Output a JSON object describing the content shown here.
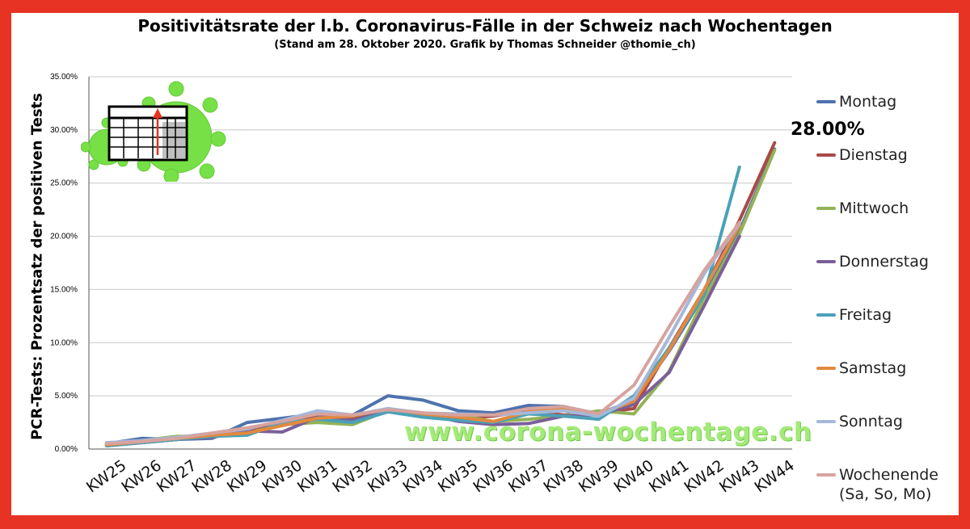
{
  "chart_data": {
    "type": "line",
    "title": "Positivitätsrate der l.b. Coronavirus-Fälle in der Schweiz nach Wochentagen",
    "subtitle": "(Stand am 28. Oktober 2020. Grafik by Thomas Schneider @thomie_ch)",
    "ylabel": "PCR-Tests: Prozentsatz der positiven Tests",
    "xlabel": "",
    "ylim": [
      0,
      35
    ],
    "yticks": [
      "0.00%",
      "5.00%",
      "10.00%",
      "15.00%",
      "20.00%",
      "25.00%",
      "30.00%",
      "35.00%"
    ],
    "categories": [
      "KW25",
      "KW26",
      "KW27",
      "KW28",
      "KW29",
      "KW30",
      "KW31",
      "KW32",
      "KW33",
      "KW34",
      "KW35",
      "KW36",
      "KW37",
      "KW38",
      "KW39",
      "KW40",
      "KW41",
      "KW42",
      "KW43",
      "KW44"
    ],
    "grid": true,
    "legend_position": "right",
    "series": [
      {
        "name": "Montag",
        "color": "#4e72ad",
        "values": [
          0.5,
          1.0,
          0.9,
          1.0,
          2.5,
          2.9,
          3.3,
          3.2,
          5.0,
          4.6,
          3.6,
          3.4,
          4.1,
          4.0,
          3.3,
          4.6,
          9.2,
          14.5,
          20.5,
          28.2
        ]
      },
      {
        "name": "Dienstag",
        "color": "#a84a46",
        "values": [
          0.3,
          0.6,
          0.9,
          1.3,
          1.8,
          2.6,
          3.0,
          3.0,
          3.7,
          3.4,
          2.9,
          3.1,
          3.6,
          3.2,
          3.4,
          3.8,
          9.5,
          15.0,
          21.5,
          28.8
        ]
      },
      {
        "name": "Mittwoch",
        "color": "#93b356",
        "values": [
          0.4,
          0.8,
          1.2,
          1.2,
          1.5,
          2.3,
          2.5,
          2.3,
          3.6,
          3.2,
          3.2,
          2.6,
          2.8,
          3.1,
          3.6,
          3.3,
          7.3,
          14.2,
          20.2,
          28.1
        ]
      },
      {
        "name": "Donnerstag",
        "color": "#7b5f9a",
        "values": [
          0.4,
          0.6,
          0.9,
          1.1,
          1.7,
          1.6,
          3.0,
          2.7,
          3.6,
          3.3,
          2.6,
          2.3,
          2.4,
          3.1,
          3.2,
          4.2,
          7.2,
          13.5,
          20.0,
          null
        ]
      },
      {
        "name": "Freitag",
        "color": "#4ba1b7",
        "values": [
          0.3,
          0.6,
          0.9,
          1.2,
          1.3,
          2.5,
          2.8,
          2.5,
          3.5,
          3.0,
          2.7,
          2.5,
          3.3,
          3.1,
          2.8,
          5.0,
          9.5,
          14.5,
          26.5,
          null
        ]
      },
      {
        "name": "Samstag",
        "color": "#e28a3f",
        "values": [
          0.4,
          0.7,
          1.0,
          1.3,
          1.5,
          2.2,
          2.9,
          3.1,
          3.8,
          3.3,
          3.0,
          2.6,
          3.5,
          3.8,
          3.3,
          4.5,
          9.3,
          15.0,
          21.0,
          null
        ]
      },
      {
        "name": "Sonntag",
        "color": "#a4b8db",
        "values": [
          0.6,
          0.8,
          1.1,
          1.5,
          1.9,
          2.7,
          3.6,
          3.2,
          3.8,
          3.4,
          3.3,
          3.2,
          3.4,
          3.6,
          3.1,
          4.8,
          10.5,
          16.5,
          21.2,
          null
        ]
      },
      {
        "name": "Wochenende\n(Sa, So, Mo)",
        "color": "#d7a39e",
        "values": [
          0.5,
          0.7,
          1.0,
          1.5,
          2.0,
          2.6,
          3.3,
          3.2,
          3.7,
          3.4,
          3.2,
          3.2,
          3.8,
          4.0,
          3.3,
          6.0,
          11.5,
          16.8,
          21.3,
          null
        ]
      }
    ],
    "annotations": [
      {
        "text": "28.00%"
      }
    ]
  },
  "watermark": "www.corona-wochentage.ch",
  "logo": "virus-calendar-logo"
}
